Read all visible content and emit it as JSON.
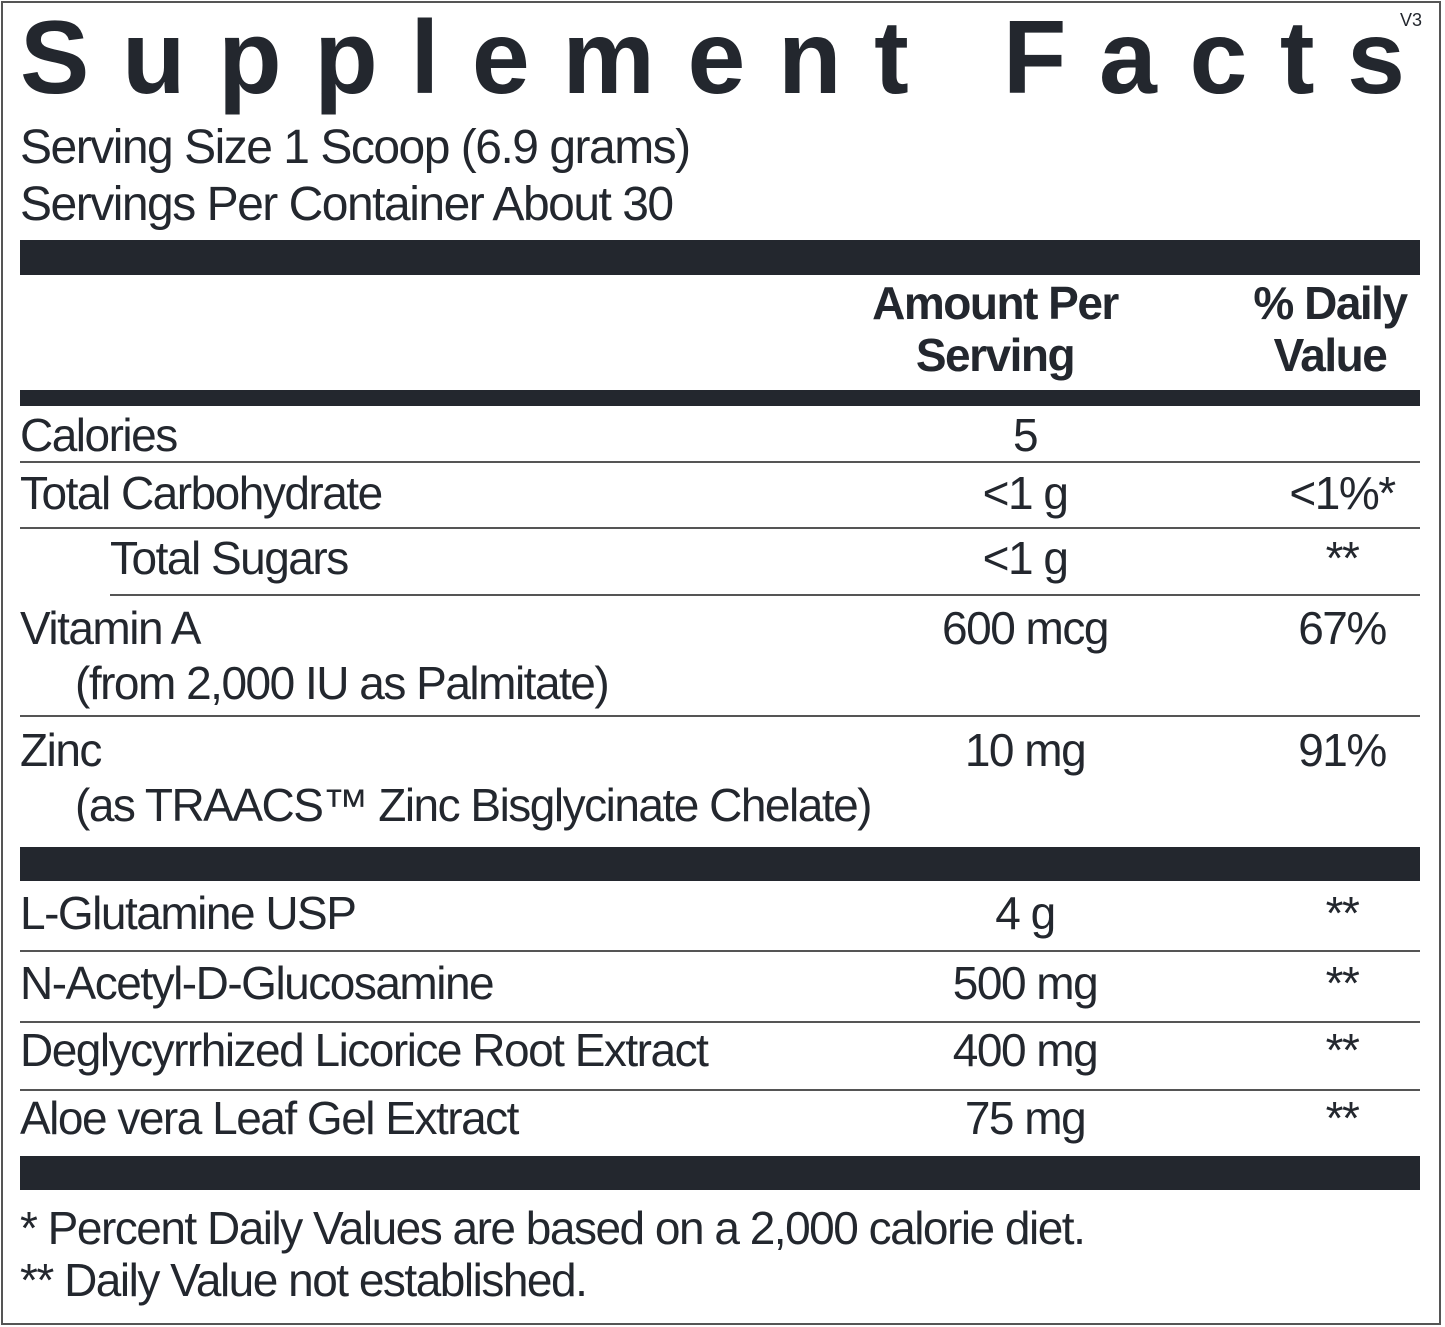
{
  "title": "Supplement Facts",
  "version": "V3",
  "serving_size": "Serving Size 1 Scoop (6.9 grams)",
  "servings_per_container": "Servings Per Container About 30",
  "header": {
    "amount": "Amount Per Serving",
    "daily_value": "% Daily Value"
  },
  "nutrients": [
    {
      "name": "Calories",
      "amount": "5"
    },
    {
      "name": "Total Carbohydrate",
      "amount": "<1 g",
      "daily_value": "<1%*"
    },
    {
      "name": "Total Sugars",
      "amount": "<1 g",
      "daily_value": "**"
    },
    {
      "name": "Vitamin A",
      "source": "(from 2,000 IU as Palmitate)",
      "amount": "600 mcg",
      "daily_value": "67%"
    },
    {
      "name": "Zinc",
      "source": "(as TRAACS™ Zinc Bisglycinate Chelate)",
      "amount": "10 mg",
      "daily_value": "91%"
    }
  ],
  "ingredients": [
    {
      "name": "L-Glutamine USP",
      "amount": "4 g",
      "daily_value": "**"
    },
    {
      "name": "N-Acetyl-D-Glucosamine",
      "amount": "500 mg",
      "daily_value": "**"
    },
    {
      "name": "Deglycyrrhized Licorice Root Extract",
      "amount": "400 mg",
      "daily_value": "**"
    },
    {
      "name": "Aloe vera Leaf Gel Extract",
      "amount": "75 mg",
      "daily_value": "**"
    }
  ],
  "footnotes": [
    "* Percent Daily Values are based on a 2,000 calorie diet.",
    "** Daily Value not established."
  ]
}
